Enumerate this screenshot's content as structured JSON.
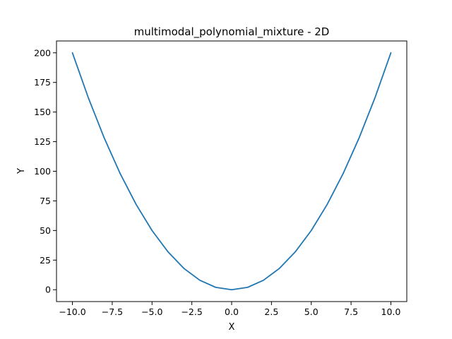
{
  "chart_data": {
    "type": "line",
    "title": "multimodal_polynomial_mixture - 2D",
    "xlabel": "X",
    "ylabel": "Y",
    "xlim": [
      -11,
      11
    ],
    "ylim": [
      -10,
      210
    ],
    "xticks": [
      -10.0,
      -7.5,
      -5.0,
      -2.5,
      0.0,
      2.5,
      5.0,
      7.5,
      10.0
    ],
    "xtick_labels": [
      "−10.0",
      "−7.5",
      "−5.0",
      "−2.5",
      "0.0",
      "2.5",
      "5.0",
      "7.5",
      "10.0"
    ],
    "yticks": [
      0,
      25,
      50,
      75,
      100,
      125,
      150,
      175,
      200
    ],
    "ytick_labels": [
      "0",
      "25",
      "50",
      "75",
      "100",
      "125",
      "150",
      "175",
      "200"
    ],
    "grid": false,
    "series": [
      {
        "color": "#1f77b4",
        "x": [
          -10,
          -9,
          -8,
          -7,
          -6,
          -5,
          -4,
          -3,
          -2,
          -1,
          0,
          1,
          2,
          3,
          4,
          5,
          6,
          7,
          8,
          9,
          10
        ],
        "y": [
          200,
          162,
          128,
          98,
          72,
          50,
          32,
          18,
          8,
          2,
          0,
          2,
          8,
          18,
          32,
          50,
          72,
          98,
          128,
          162,
          200
        ]
      }
    ]
  }
}
